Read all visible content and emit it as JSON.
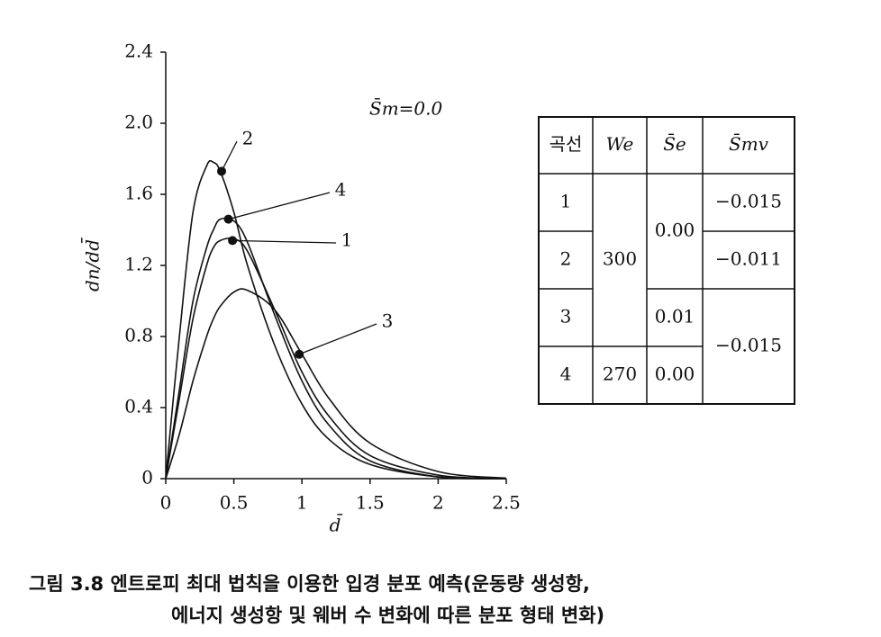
{
  "chart_data": {
    "type": "line",
    "annotation": "S̄m=0.0",
    "xlabel": "d̄",
    "ylabel": "dn/dd̄",
    "x": [
      0,
      0.1,
      0.2,
      0.3,
      0.35,
      0.4,
      0.5,
      0.6,
      0.8,
      1.0,
      1.2,
      1.5,
      2.0,
      2.5
    ],
    "series": [
      {
        "name": "1",
        "color": "#111111",
        "values": [
          0,
          0.45,
          0.9,
          1.2,
          1.3,
          1.34,
          1.35,
          1.28,
          0.95,
          0.6,
          0.35,
          0.13,
          0.02,
          0
        ]
      },
      {
        "name": "2",
        "color": "#111111",
        "values": [
          0,
          0.8,
          1.5,
          1.76,
          1.78,
          1.73,
          1.5,
          1.2,
          0.75,
          0.42,
          0.22,
          0.08,
          0.01,
          0
        ]
      },
      {
        "name": "3",
        "color": "#111111",
        "values": [
          0,
          0.25,
          0.55,
          0.8,
          0.9,
          0.97,
          1.05,
          1.06,
          0.95,
          0.7,
          0.45,
          0.2,
          0.04,
          0.003
        ]
      },
      {
        "name": "4",
        "color": "#111111",
        "values": [
          0,
          0.5,
          1.0,
          1.3,
          1.4,
          1.46,
          1.45,
          1.33,
          0.92,
          0.55,
          0.3,
          0.1,
          0.01,
          0
        ]
      }
    ],
    "markers": [
      {
        "label": "1",
        "x": 0.49,
        "y": 1.34
      },
      {
        "label": "2",
        "x": 0.41,
        "y": 1.73
      },
      {
        "label": "3",
        "x": 0.98,
        "y": 0.7
      },
      {
        "label": "4",
        "x": 0.46,
        "y": 1.46
      }
    ],
    "xlim": [
      0,
      2.5
    ],
    "ylim": [
      0,
      2.4
    ],
    "xticks": [
      0,
      0.5,
      1,
      1.5,
      2,
      2.5
    ],
    "yticks": [
      0,
      0.4,
      0.8,
      1.2,
      1.6,
      {
        "value": 2,
        "label": "2.0"
      },
      2.4
    ]
  },
  "table": {
    "header": [
      "곡선",
      "We",
      "S̄e",
      "S̄mv"
    ],
    "columns": [
      [
        "1",
        "2",
        "3",
        "4"
      ],
      [
        "300",
        "270"
      ],
      [
        "0.00",
        "0.01",
        "0.00"
      ],
      [
        "−0.015",
        "−0.011",
        "−0.015"
      ]
    ]
  },
  "caption": [
    "그림 3.8  엔트로피 최대 법칙을 이용한 입경 분포 예측(운동량 생성항,",
    "에너지 생성항 및 웨버 수 변화에 따른 분포 형태 변화)"
  ]
}
